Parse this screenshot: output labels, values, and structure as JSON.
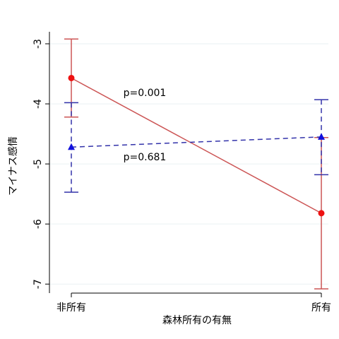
{
  "chart_data": {
    "type": "line",
    "title": "",
    "xlabel": "森林所有の有無",
    "ylabel": "マイナス感情",
    "categories": [
      "非所有",
      "所有"
    ],
    "ylim": [
      -7.15,
      -2.8
    ],
    "yticks": [
      -3,
      -4,
      -5,
      -6,
      -7
    ],
    "ytick_labels": [
      "-3",
      "-4",
      "-5",
      "-6",
      "-7"
    ],
    "grid": true,
    "legend": "none",
    "series": [
      {
        "values": [
          -3.57,
          -5.82
        ],
        "ci_low": [
          -4.22,
          -7.08
        ],
        "ci_high": [
          -2.92,
          -4.56
        ],
        "color": "#cc5555",
        "marker": "circle",
        "marker_color": "#ee1111",
        "line_style": "solid"
      },
      {
        "values": [
          -4.72,
          -4.55
        ],
        "ci_low": [
          -5.47,
          -5.18
        ],
        "ci_high": [
          -3.98,
          -3.93
        ],
        "color": "#3333aa",
        "marker": "triangle",
        "marker_color": "#1111dd",
        "line_style": "dashed"
      }
    ],
    "annotations": [
      {
        "text": "p=0.001"
      },
      {
        "text": "p=0.681"
      }
    ]
  }
}
